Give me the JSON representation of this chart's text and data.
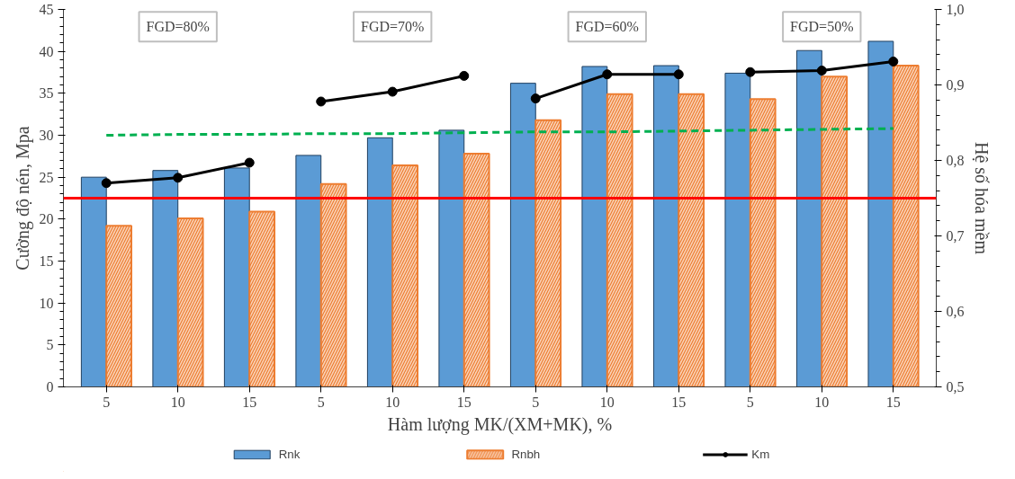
{
  "chart_data": {
    "type": "bar",
    "xlabel": "Hàm lượng MK/(XM+MK), %",
    "ylabel": "Cường độ nén, Mpa",
    "y2label": "Hệ số hóa mềm",
    "categories": [
      "5",
      "10",
      "15",
      "5",
      "10",
      "15",
      "5",
      "10",
      "15",
      "5",
      "10",
      "15"
    ],
    "series": [
      {
        "name": "Rnk",
        "color": "#5b9bd5",
        "values": [
          25.0,
          25.8,
          26.1,
          27.6,
          29.7,
          30.6,
          36.2,
          38.2,
          38.3,
          37.4,
          40.1,
          41.2
        ]
      },
      {
        "name": "Rnbh",
        "color": "#ed7d31",
        "values": [
          19.2,
          20.1,
          20.9,
          24.2,
          26.4,
          27.8,
          31.8,
          34.9,
          34.9,
          34.3,
          37.0,
          38.3
        ]
      },
      {
        "name": "Km",
        "type": "line",
        "axis": "y2",
        "color": "#000000",
        "marker": "circle",
        "values": [
          0.77,
          0.777,
          0.797,
          null,
          null,
          null,
          null,
          null,
          null,
          null,
          null,
          null
        ]
      },
      {
        "type": "line",
        "axis": "y2",
        "color": "#000000",
        "marker": "circle",
        "values": [
          null,
          null,
          null,
          0.878,
          0.891,
          0.912,
          null,
          null,
          null,
          null,
          null,
          null
        ]
      },
      {
        "type": "line",
        "axis": "y2",
        "color": "#000000",
        "marker": "circle",
        "values": [
          null,
          null,
          null,
          null,
          null,
          null,
          0.882,
          0.914,
          0.914,
          null,
          null,
          null
        ]
      },
      {
        "type": "line",
        "axis": "y2",
        "color": "#000000",
        "marker": "circle",
        "values": [
          null,
          null,
          null,
          null,
          null,
          null,
          null,
          null,
          null,
          0.917,
          0.919,
          0.931
        ]
      },
      {
        "type": "line",
        "color": "#00b050",
        "line_style": "dashed",
        "marker": "none",
        "values": [
          30.0,
          30.1,
          30.1,
          30.2,
          30.2,
          30.3,
          30.4,
          30.4,
          30.5,
          30.6,
          30.7,
          30.8
        ]
      }
    ],
    "ylim": [
      0,
      45
    ],
    "yticks": [
      0,
      5,
      10,
      15,
      20,
      25,
      30,
      35,
      40,
      45
    ],
    "y2lim": [
      0.5,
      1.0
    ],
    "y2ticks": [
      {
        "value": 0.5,
        "label": "0,5"
      },
      {
        "value": 0.6,
        "label": "0,6"
      },
      {
        "value": 0.7,
        "label": "0,7"
      },
      {
        "value": 0.8,
        "label": "0,8"
      },
      {
        "value": 0.9,
        "label": "0,9"
      },
      {
        "value": 1.0,
        "label": "1,0"
      }
    ],
    "ref_lines": [
      {
        "axis": "y",
        "value": 22.5,
        "color": "#ff0000"
      }
    ],
    "annotations": [
      "FGD=80%",
      "FGD=70%",
      "FGD=60%",
      "FGD=50%"
    ],
    "grid": false,
    "legend": "bottom"
  }
}
